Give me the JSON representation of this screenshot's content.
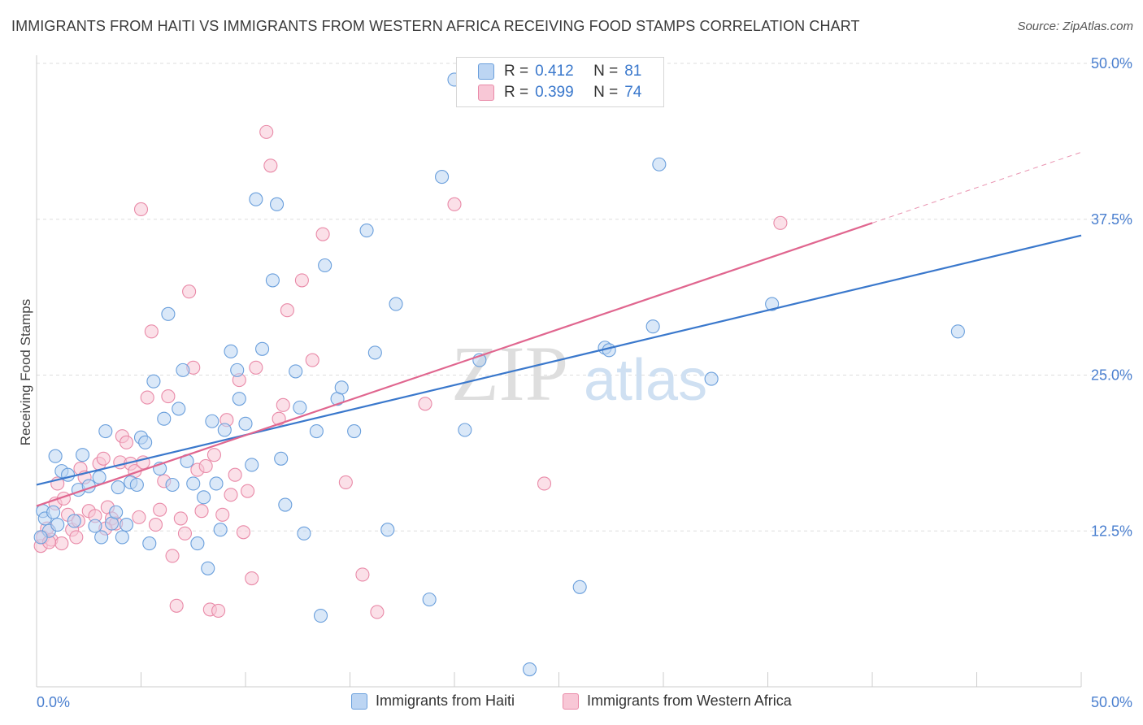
{
  "title": "IMMIGRANTS FROM HAITI VS IMMIGRANTS FROM WESTERN AFRICA RECEIVING FOOD STAMPS CORRELATION CHART",
  "source": "Source: ZipAtlas.com",
  "watermark": {
    "zip": "ZIP",
    "atlas": "atlas"
  },
  "colors": {
    "haiti_fill": "#bcd5f3",
    "haiti_stroke": "#6a9fdc",
    "haiti_line": "#3a78cc",
    "wa_fill": "#f8c7d6",
    "wa_stroke": "#e98aa8",
    "wa_line": "#e0668f",
    "tick_label": "#4a7fcf",
    "grid": "#dddddd"
  },
  "legend_top": {
    "items": [
      {
        "r_label": "R =",
        "r_value": "0.412",
        "n_label": "N =",
        "n_value": "81"
      },
      {
        "r_label": "R =",
        "r_value": "0.399",
        "n_label": "N =",
        "n_value": "74"
      }
    ]
  },
  "legend_bottom": {
    "items": [
      {
        "label": "Immigrants from Haiti"
      },
      {
        "label": "Immigrants from Western Africa"
      }
    ]
  },
  "chart_data": {
    "type": "scatter",
    "title": "IMMIGRANTS FROM HAITI VS IMMIGRANTS FROM WESTERN AFRICA RECEIVING FOOD STAMPS CORRELATION CHART",
    "xlabel": "",
    "ylabel": "Receiving Food Stamps",
    "xlim": [
      0,
      50
    ],
    "ylim": [
      0,
      50
    ],
    "x_tick_labels": [
      "0.0%",
      "50.0%"
    ],
    "y_ticks": [
      12.5,
      25.0,
      37.5,
      50.0
    ],
    "y_tick_labels": [
      "12.5%",
      "25.0%",
      "37.5%",
      "50.0%"
    ],
    "grid": true,
    "legend_placement": "top-center",
    "series": [
      {
        "name": "Immigrants from Haiti",
        "R": 0.412,
        "N": 81,
        "trend": {
          "x": [
            0,
            50
          ],
          "y": [
            16.2,
            36.2
          ]
        },
        "points": [
          [
            0.3,
            14.1
          ],
          [
            0.4,
            13.5
          ],
          [
            0.6,
            12.5
          ],
          [
            0.8,
            14.0
          ],
          [
            0.9,
            18.5
          ],
          [
            1.0,
            13.0
          ],
          [
            1.2,
            17.3
          ],
          [
            1.5,
            17.0
          ],
          [
            1.8,
            13.3
          ],
          [
            2.0,
            15.8
          ],
          [
            2.2,
            18.6
          ],
          [
            2.5,
            16.1
          ],
          [
            2.8,
            12.9
          ],
          [
            3.0,
            16.8
          ],
          [
            3.1,
            12.0
          ],
          [
            3.3,
            20.5
          ],
          [
            3.6,
            13.1
          ],
          [
            3.8,
            14.0
          ],
          [
            3.9,
            16.0
          ],
          [
            4.1,
            12.0
          ],
          [
            4.3,
            13.0
          ],
          [
            4.5,
            16.4
          ],
          [
            4.8,
            16.2
          ],
          [
            5.0,
            20.0
          ],
          [
            5.2,
            19.6
          ],
          [
            5.4,
            11.5
          ],
          [
            5.6,
            24.5
          ],
          [
            5.9,
            17.5
          ],
          [
            6.1,
            21.5
          ],
          [
            6.3,
            29.9
          ],
          [
            6.5,
            16.2
          ],
          [
            6.8,
            22.3
          ],
          [
            7.0,
            25.4
          ],
          [
            7.2,
            18.1
          ],
          [
            7.5,
            16.3
          ],
          [
            7.7,
            11.5
          ],
          [
            8.0,
            15.2
          ],
          [
            8.2,
            9.5
          ],
          [
            8.4,
            21.3
          ],
          [
            8.6,
            16.3
          ],
          [
            8.8,
            12.6
          ],
          [
            9.0,
            20.6
          ],
          [
            9.3,
            26.9
          ],
          [
            9.6,
            25.4
          ],
          [
            9.7,
            23.1
          ],
          [
            10.0,
            21.1
          ],
          [
            10.3,
            17.8
          ],
          [
            10.5,
            39.1
          ],
          [
            10.8,
            27.1
          ],
          [
            11.3,
            32.6
          ],
          [
            11.5,
            38.7
          ],
          [
            11.7,
            18.3
          ],
          [
            11.9,
            14.6
          ],
          [
            12.4,
            25.3
          ],
          [
            12.6,
            22.4
          ],
          [
            12.8,
            12.3
          ],
          [
            13.4,
            20.5
          ],
          [
            13.6,
            5.7
          ],
          [
            13.8,
            33.8
          ],
          [
            14.4,
            23.1
          ],
          [
            14.6,
            24.0
          ],
          [
            15.2,
            20.5
          ],
          [
            15.8,
            36.6
          ],
          [
            16.2,
            26.8
          ],
          [
            16.8,
            12.6
          ],
          [
            17.2,
            30.7
          ],
          [
            18.8,
            7.0
          ],
          [
            19.4,
            40.9
          ],
          [
            20.0,
            48.7
          ],
          [
            20.5,
            20.6
          ],
          [
            21.2,
            26.2
          ],
          [
            23.6,
            1.4
          ],
          [
            26.0,
            8.0
          ],
          [
            27.2,
            27.2
          ],
          [
            27.4,
            27.0
          ],
          [
            29.5,
            28.9
          ],
          [
            29.8,
            41.9
          ],
          [
            32.3,
            24.7
          ],
          [
            35.2,
            30.7
          ],
          [
            44.1,
            28.5
          ],
          [
            0.2,
            12.0
          ]
        ]
      },
      {
        "name": "Immigrants from Western Africa",
        "R": 0.399,
        "N": 74,
        "trend": {
          "x": [
            0,
            40
          ],
          "y": [
            14.5,
            37.2
          ]
        },
        "points": [
          [
            0.2,
            11.3
          ],
          [
            0.3,
            12.0
          ],
          [
            0.5,
            12.7
          ],
          [
            0.7,
            11.8
          ],
          [
            0.9,
            14.7
          ],
          [
            1.0,
            16.3
          ],
          [
            1.2,
            11.5
          ],
          [
            1.5,
            13.8
          ],
          [
            1.7,
            12.6
          ],
          [
            1.9,
            12.0
          ],
          [
            2.1,
            17.5
          ],
          [
            2.3,
            16.8
          ],
          [
            2.5,
            14.1
          ],
          [
            2.8,
            13.7
          ],
          [
            3.0,
            17.9
          ],
          [
            3.2,
            18.3
          ],
          [
            3.4,
            14.4
          ],
          [
            3.6,
            13.5
          ],
          [
            3.8,
            13.1
          ],
          [
            4.0,
            18.0
          ],
          [
            4.1,
            20.1
          ],
          [
            4.3,
            19.6
          ],
          [
            4.5,
            17.9
          ],
          [
            4.7,
            17.3
          ],
          [
            4.9,
            13.6
          ],
          [
            5.1,
            18.0
          ],
          [
            5.3,
            23.2
          ],
          [
            5.5,
            28.5
          ],
          [
            5.7,
            13.0
          ],
          [
            5.9,
            14.2
          ],
          [
            6.1,
            16.5
          ],
          [
            6.3,
            23.3
          ],
          [
            6.5,
            10.5
          ],
          [
            6.7,
            6.5
          ],
          [
            6.9,
            13.5
          ],
          [
            7.1,
            12.3
          ],
          [
            7.3,
            31.7
          ],
          [
            7.5,
            25.6
          ],
          [
            7.7,
            17.4
          ],
          [
            7.9,
            14.1
          ],
          [
            8.1,
            17.7
          ],
          [
            8.3,
            6.2
          ],
          [
            8.5,
            18.6
          ],
          [
            8.7,
            6.1
          ],
          [
            8.9,
            13.8
          ],
          [
            9.1,
            21.4
          ],
          [
            9.3,
            15.4
          ],
          [
            9.5,
            17.0
          ],
          [
            9.7,
            24.6
          ],
          [
            9.9,
            12.4
          ],
          [
            10.1,
            15.7
          ],
          [
            10.3,
            8.7
          ],
          [
            10.5,
            25.6
          ],
          [
            11.0,
            44.5
          ],
          [
            11.2,
            41.8
          ],
          [
            11.6,
            21.5
          ],
          [
            11.8,
            22.6
          ],
          [
            12.0,
            30.2
          ],
          [
            12.7,
            32.6
          ],
          [
            13.2,
            26.2
          ],
          [
            13.7,
            36.3
          ],
          [
            14.8,
            16.4
          ],
          [
            15.6,
            9.0
          ],
          [
            16.3,
            6.0
          ],
          [
            18.6,
            22.7
          ],
          [
            20.0,
            38.7
          ],
          [
            22.2,
            49.8
          ],
          [
            24.3,
            16.3
          ],
          [
            35.6,
            37.2
          ],
          [
            5.0,
            38.3
          ],
          [
            0.6,
            11.6
          ],
          [
            1.3,
            15.1
          ],
          [
            3.3,
            12.7
          ],
          [
            2.0,
            13.3
          ]
        ]
      }
    ]
  }
}
